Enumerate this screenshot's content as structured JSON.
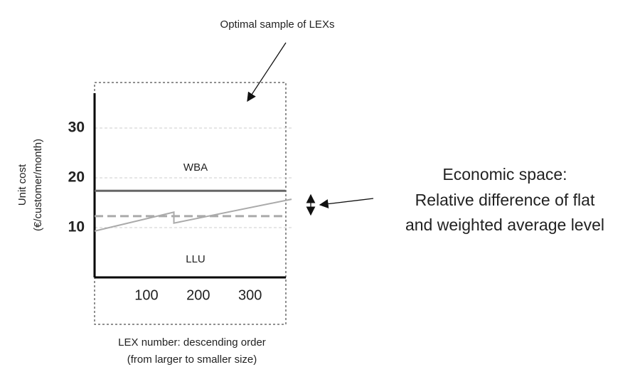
{
  "chart_data": {
    "type": "line",
    "title": "Optimal sample of LEXs",
    "annotation": [
      "Economic space:",
      "Relative difference of flat",
      "and weighted average level"
    ],
    "x_label": [
      "LEX number: descending order",
      "(from larger to smaller size)"
    ],
    "y_label": [
      "Unit cost",
      "(€/customer/month)"
    ],
    "xlim": [
      0,
      380
    ],
    "ylim": [
      0,
      37
    ],
    "xticks": [
      100,
      200,
      300
    ],
    "yticks": [
      10,
      20,
      30
    ],
    "grid": true,
    "series": [
      {
        "name": "WBA",
        "color": "#666666",
        "dashed": false,
        "x": [
          0,
          368
        ],
        "values": [
          17.4,
          17.4
        ]
      },
      {
        "name": "LLU",
        "color": "#aaaaaa",
        "dashed": false,
        "x": [
          0,
          153,
          153,
          380
        ],
        "values": [
          9.3,
          13.1,
          10.9,
          15.7
        ]
      },
      {
        "color": "#aaaaaa",
        "dashed": true,
        "x": [
          0,
          368
        ],
        "values": [
          12.3,
          12.3
        ]
      }
    ]
  }
}
